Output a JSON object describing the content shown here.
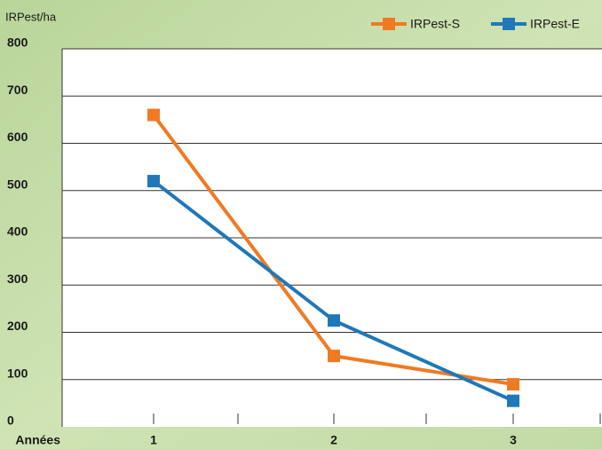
{
  "chart_data": {
    "type": "line",
    "y_label": "IRPest/ha",
    "x_label": "Années",
    "categories": [
      "1",
      "2",
      "3"
    ],
    "series": [
      {
        "name": "IRPest-S",
        "color": "#f07a22",
        "values": [
          660,
          150,
          90
        ]
      },
      {
        "name": "IRPest-E",
        "color": "#1f78b8",
        "values": [
          520,
          225,
          55
        ]
      }
    ],
    "ylim": [
      0,
      800
    ],
    "yticks": [
      0,
      100,
      200,
      300,
      400,
      500,
      600,
      700,
      800
    ],
    "grid": true
  }
}
